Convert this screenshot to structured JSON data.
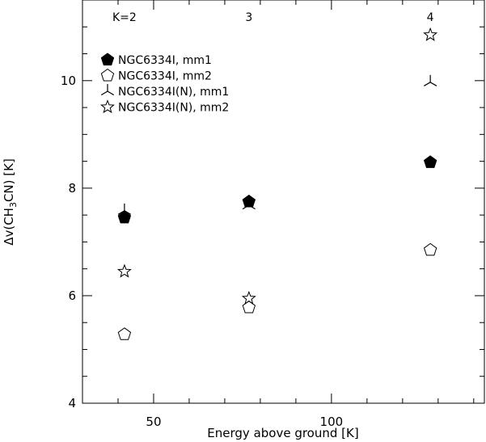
{
  "chart_data": {
    "type": "scatter",
    "title": "",
    "xlabel": "Energy above ground [K]",
    "ylabel_parts": {
      "pre": "Δv(CH",
      "sub": "3",
      "post": "CN) [K]"
    },
    "xlim": [
      30,
      143
    ],
    "ylim": [
      4,
      11.5
    ],
    "x_ticks": [
      50,
      100
    ],
    "y_ticks": [
      4,
      6,
      8,
      10
    ],
    "x_tick_labels": [
      "50",
      "100"
    ],
    "y_tick_labels": [
      "4",
      "6",
      "8",
      "10"
    ],
    "top_annotations": [
      {
        "x": 41.8,
        "text": "K=2"
      },
      {
        "x": 76.8,
        "text": "3"
      },
      {
        "x": 127.8,
        "text": "4"
      }
    ],
    "grid": false,
    "legend_position": "top-left",
    "series": [
      {
        "name": "NGC6334I, mm1",
        "marker": "filled-pentagon",
        "x": [
          41.8,
          76.8,
          127.8
        ],
        "y": [
          7.45,
          7.75,
          8.48
        ]
      },
      {
        "name": "NGC6334I, mm2",
        "marker": "open-pentagon",
        "x": [
          41.8,
          76.8,
          127.8
        ],
        "y": [
          5.28,
          5.78,
          6.85
        ]
      },
      {
        "name": "NGC6334I(N), mm1",
        "marker": "asterisk",
        "x": [
          41.8,
          76.8,
          127.8
        ],
        "y": [
          7.58,
          7.68,
          9.97
        ]
      },
      {
        "name": "NGC6334I(N), mm2",
        "marker": "open-star",
        "x": [
          41.8,
          76.8,
          127.8
        ],
        "y": [
          6.45,
          5.95,
          10.85
        ]
      }
    ]
  }
}
